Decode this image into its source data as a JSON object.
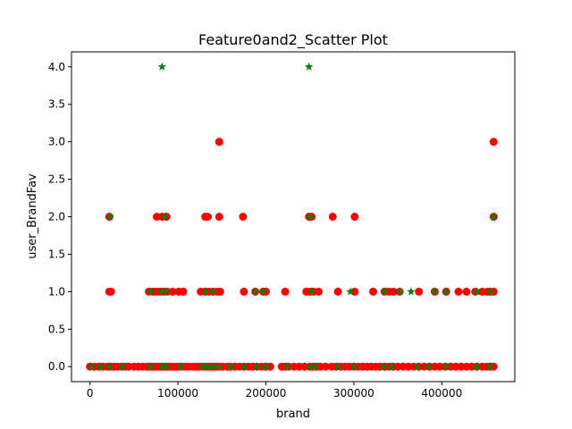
{
  "chart_data": {
    "type": "scatter",
    "title": "Feature0and2_Scatter Plot",
    "xlabel": "brand",
    "ylabel": "user_BrandFav",
    "xlim": [
      -21000,
      483000
    ],
    "ylim": [
      -0.2,
      4.2
    ],
    "xticks": [
      0,
      100000,
      200000,
      300000,
      400000
    ],
    "xtick_labels": [
      "0",
      "100000",
      "200000",
      "300000",
      "400000"
    ],
    "yticks": [
      0.0,
      0.5,
      1.0,
      1.5,
      2.0,
      2.5,
      3.0,
      3.5,
      4.0
    ],
    "ytick_labels": [
      "0.0",
      "0.5",
      "1.0",
      "1.5",
      "2.0",
      "2.5",
      "3.0",
      "3.5",
      "4.0"
    ],
    "grid": false,
    "colors": {
      "red_series": "#ff0000",
      "green_series": "#008000"
    },
    "series": [
      {
        "marker": "circle",
        "color": "#ff0000",
        "points": [
          [
            0,
            0
          ],
          [
            5000,
            0
          ],
          [
            10000,
            0
          ],
          [
            15000,
            0
          ],
          [
            20000,
            0
          ],
          [
            23000,
            0
          ],
          [
            27000,
            0
          ],
          [
            31000,
            0
          ],
          [
            36000,
            0
          ],
          [
            40000,
            0
          ],
          [
            44000,
            0
          ],
          [
            50000,
            0
          ],
          [
            55000,
            0
          ],
          [
            60000,
            0
          ],
          [
            65000,
            0
          ],
          [
            68000,
            0
          ],
          [
            71000,
            0
          ],
          [
            74000,
            0
          ],
          [
            77000,
            0
          ],
          [
            80000,
            0
          ],
          [
            83000,
            0
          ],
          [
            86000,
            0
          ],
          [
            89000,
            0
          ],
          [
            92000,
            0
          ],
          [
            96000,
            0
          ],
          [
            100000,
            0
          ],
          [
            104000,
            0
          ],
          [
            108000,
            0
          ],
          [
            112000,
            0
          ],
          [
            117000,
            0
          ],
          [
            121000,
            0
          ],
          [
            125000,
            0
          ],
          [
            129000,
            0
          ],
          [
            132000,
            0
          ],
          [
            135000,
            0
          ],
          [
            138000,
            0
          ],
          [
            141000,
            0
          ],
          [
            144000,
            0
          ],
          [
            147000,
            0
          ],
          [
            151000,
            0
          ],
          [
            156000,
            0
          ],
          [
            160000,
            0
          ],
          [
            165000,
            0
          ],
          [
            170000,
            0
          ],
          [
            175000,
            0
          ],
          [
            180000,
            0
          ],
          [
            185000,
            0
          ],
          [
            190000,
            0
          ],
          [
            195000,
            0
          ],
          [
            200000,
            0
          ],
          [
            205000,
            0
          ],
          [
            218000,
            0
          ],
          [
            222000,
            0
          ],
          [
            226000,
            0
          ],
          [
            232000,
            0
          ],
          [
            238000,
            0
          ],
          [
            244000,
            0
          ],
          [
            250000,
            0
          ],
          [
            254000,
            0
          ],
          [
            258000,
            0
          ],
          [
            262000,
            0
          ],
          [
            268000,
            0
          ],
          [
            275000,
            0
          ],
          [
            280000,
            0
          ],
          [
            285000,
            0
          ],
          [
            290000,
            0
          ],
          [
            295000,
            0
          ],
          [
            300000,
            0
          ],
          [
            305000,
            0
          ],
          [
            310000,
            0
          ],
          [
            315000,
            0
          ],
          [
            320000,
            0
          ],
          [
            325000,
            0
          ],
          [
            330000,
            0
          ],
          [
            335000,
            0
          ],
          [
            340000,
            0
          ],
          [
            345000,
            0
          ],
          [
            350000,
            0
          ],
          [
            356000,
            0
          ],
          [
            362000,
            0
          ],
          [
            368000,
            0
          ],
          [
            374000,
            0
          ],
          [
            380000,
            0
          ],
          [
            386000,
            0
          ],
          [
            392000,
            0
          ],
          [
            398000,
            0
          ],
          [
            404000,
            0
          ],
          [
            410000,
            0
          ],
          [
            416000,
            0
          ],
          [
            422000,
            0
          ],
          [
            428000,
            0
          ],
          [
            434000,
            0
          ],
          [
            440000,
            0
          ],
          [
            446000,
            0
          ],
          [
            451000,
            0
          ],
          [
            455000,
            0
          ],
          [
            459000,
            0
          ],
          [
            22000,
            1
          ],
          [
            24000,
            1
          ],
          [
            67000,
            1
          ],
          [
            72000,
            1
          ],
          [
            76000,
            1
          ],
          [
            80000,
            1
          ],
          [
            84000,
            1
          ],
          [
            88000,
            1
          ],
          [
            94000,
            1
          ],
          [
            101000,
            1
          ],
          [
            106000,
            1
          ],
          [
            126000,
            1
          ],
          [
            131000,
            1
          ],
          [
            135000,
            1
          ],
          [
            140000,
            1
          ],
          [
            145000,
            1
          ],
          [
            148000,
            1
          ],
          [
            175000,
            1
          ],
          [
            188000,
            1
          ],
          [
            197000,
            1
          ],
          [
            200000,
            1
          ],
          [
            222000,
            1
          ],
          [
            246000,
            1
          ],
          [
            250000,
            1
          ],
          [
            254000,
            1
          ],
          [
            260000,
            1
          ],
          [
            282000,
            1
          ],
          [
            301000,
            1
          ],
          [
            322000,
            1
          ],
          [
            335000,
            1
          ],
          [
            340000,
            1
          ],
          [
            345000,
            1
          ],
          [
            352000,
            1
          ],
          [
            374000,
            1
          ],
          [
            392000,
            1
          ],
          [
            405000,
            1
          ],
          [
            419000,
            1
          ],
          [
            428000,
            1
          ],
          [
            438000,
            1
          ],
          [
            446000,
            1
          ],
          [
            452000,
            1
          ],
          [
            455000,
            1
          ],
          [
            459000,
            1
          ],
          [
            22000,
            2
          ],
          [
            76000,
            2
          ],
          [
            82000,
            2
          ],
          [
            87000,
            2
          ],
          [
            131000,
            2
          ],
          [
            134000,
            2
          ],
          [
            147000,
            2
          ],
          [
            174000,
            2
          ],
          [
            249000,
            2
          ],
          [
            252000,
            2
          ],
          [
            276000,
            2
          ],
          [
            301000,
            2
          ],
          [
            459000,
            2
          ],
          [
            147000,
            3
          ],
          [
            459000,
            3
          ]
        ]
      },
      {
        "marker": "star",
        "color": "#008000",
        "points": [
          [
            2000,
            0
          ],
          [
            12000,
            0
          ],
          [
            22000,
            0
          ],
          [
            37000,
            0
          ],
          [
            69000,
            0
          ],
          [
            82000,
            0
          ],
          [
            87000,
            0
          ],
          [
            103000,
            0
          ],
          [
            128000,
            0
          ],
          [
            133000,
            0
          ],
          [
            139000,
            0
          ],
          [
            146000,
            0
          ],
          [
            160000,
            0
          ],
          [
            175000,
            0
          ],
          [
            190000,
            0
          ],
          [
            200000,
            0
          ],
          [
            224000,
            0
          ],
          [
            250000,
            0
          ],
          [
            256000,
            0
          ],
          [
            282000,
            0
          ],
          [
            300000,
            0
          ],
          [
            334000,
            0
          ],
          [
            343000,
            0
          ],
          [
            372000,
            0
          ],
          [
            385000,
            0
          ],
          [
            405000,
            0
          ],
          [
            440000,
            0
          ],
          [
            455000,
            0
          ],
          [
            69000,
            1
          ],
          [
            81000,
            1
          ],
          [
            86000,
            1
          ],
          [
            131000,
            1
          ],
          [
            140000,
            1
          ],
          [
            188000,
            1
          ],
          [
            197000,
            1
          ],
          [
            252000,
            1
          ],
          [
            296000,
            1
          ],
          [
            335000,
            1
          ],
          [
            352000,
            1
          ],
          [
            365000,
            1
          ],
          [
            392000,
            1
          ],
          [
            405000,
            1
          ],
          [
            440000,
            1
          ],
          [
            455000,
            1
          ],
          [
            23000,
            2
          ],
          [
            85000,
            2
          ],
          [
            250000,
            2
          ],
          [
            459000,
            2
          ],
          [
            82000,
            4
          ],
          [
            249000,
            4
          ]
        ]
      }
    ]
  }
}
